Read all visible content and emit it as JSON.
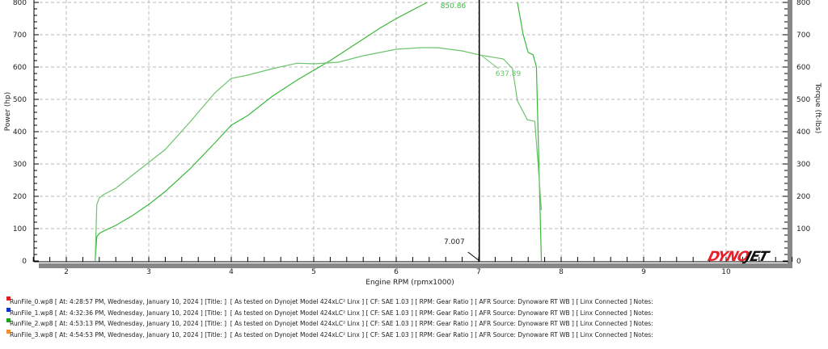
{
  "chart_data": {
    "type": "line",
    "xlabel": "Engine RPM (rpmx1000)",
    "ylabel": "Power (hp)",
    "y2label": "Torque (ft-lbs)",
    "xlim": [
      1.55,
      10.8
    ],
    "ylim": [
      0,
      800
    ],
    "y2lim": [
      0,
      800
    ],
    "xticks": [
      "2",
      "3",
      "4",
      "5",
      "6",
      "7",
      "8",
      "9",
      "10"
    ],
    "yticks": [
      "0",
      "100",
      "200",
      "300",
      "400",
      "500",
      "600",
      "700",
      "800"
    ],
    "grid": true,
    "series": [
      {
        "kind": "power",
        "color": "#3cb83c",
        "x": [
          2.35,
          2.37,
          2.4,
          2.45,
          2.6,
          2.8,
          3.0,
          3.2,
          3.5,
          3.8,
          4.0,
          4.2,
          4.5,
          4.8,
          5.0,
          5.2,
          5.5,
          5.8,
          6.0,
          6.3,
          6.6,
          6.9,
          7.2,
          7.47,
          7.54,
          7.6,
          7.66,
          7.7,
          7.76
        ],
        "y": [
          0,
          75,
          85,
          92,
          110,
          140,
          175,
          215,
          285,
          365,
          420,
          450,
          510,
          560,
          590,
          620,
          670,
          720,
          750,
          790,
          830,
          855,
          860,
          800,
          700,
          645,
          638,
          600,
          0
        ]
      },
      {
        "kind": "torque",
        "color": "#6cc46c",
        "x": [
          2.35,
          2.37,
          2.4,
          2.45,
          2.6,
          2.8,
          3.0,
          3.2,
          3.5,
          3.8,
          4.0,
          4.2,
          4.5,
          4.8,
          5.0,
          5.3,
          5.6,
          6.0,
          6.3,
          6.5,
          6.8,
          7.0,
          7.3,
          7.41,
          7.47,
          7.59,
          7.68,
          7.72,
          7.76
        ],
        "y": [
          0,
          175,
          195,
          205,
          225,
          265,
          305,
          345,
          430,
          520,
          565,
          575,
          595,
          612,
          610,
          615,
          635,
          655,
          660,
          660,
          650,
          638,
          625,
          595,
          495,
          437,
          432,
          300,
          157
        ]
      }
    ],
    "annotations": [
      {
        "text": "850.86",
        "x": 7.0,
        "value": 850.86
      },
      {
        "text": "637.89",
        "x": 7.0,
        "value": 637.89
      }
    ],
    "cursor": {
      "x": 7.007,
      "label": "7.007"
    }
  },
  "logo": "DYNOJET",
  "legend": [
    {
      "color": "#e02020",
      "text": "RunFile_0.wp8 [ At: 4:28:57 PM, Wednesday, January 10, 2024 ] [Title: ]  [ As tested on Dynojet Model 424xLC² Linx ] [ CF: SAE 1.03 ] [ RPM: Gear Ratio ] [ AFR Source: Dynoware RT WB ] [ Linx Connected ] Notes:"
    },
    {
      "color": "#1030d0",
      "text": "RunFile_1.wp8 [ At: 4:32:36 PM, Wednesday, January 10, 2024 ] [Title: ]  [ As tested on Dynojet Model 424xLC² Linx ] [ CF: SAE 1.03 ] [ RPM: Gear Ratio ] [ AFR Source: Dynoware RT WB ] [ Linx Connected ] Notes:"
    },
    {
      "color": "#20a020",
      "text": "RunFile_2.wp8 [ At: 4:53:13 PM, Wednesday, January 10, 2024 ] [Title: ]  [ As tested on Dynojet Model 424xLC² Linx ] [ CF: SAE 1.03 ] [ RPM: Gear Ratio ] [ AFR Source: Dynoware RT WB ] [ Linx Connected ] Notes:"
    },
    {
      "color": "#f09030",
      "text": "RunFile_3.wp8 [ At: 4:54:53 PM, Wednesday, January 10, 2024 ] [Title: ]  [ As tested on Dynojet Model 424xLC² Linx ] [ CF: SAE 1.03 ] [ RPM: Gear Ratio ] [ AFR Source: Dynoware RT WB ] [ Linx Connected ] Notes:"
    }
  ]
}
